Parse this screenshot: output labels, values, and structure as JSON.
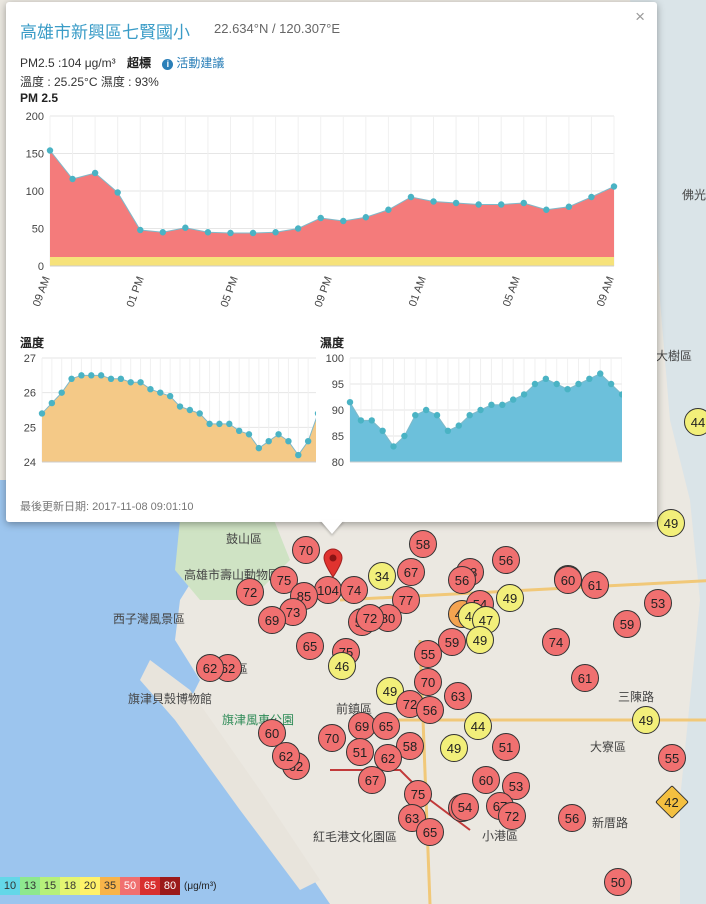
{
  "popup": {
    "title": "高雄市新興區七賢國小",
    "coords": "22.634°N / 120.307°E",
    "pm25_text": "PM2.5 :104 μg/m³",
    "status": "超標",
    "advice_label": "活動建議",
    "temp_humid_text": "溫度 : 25.25°C  濕度 : 93%",
    "pm_chart_label": "PM 2.5",
    "temp_chart_label": "溫度",
    "humid_chart_label": "濕度",
    "updated": "最後更新日期: 2017-11-08 09:01:10",
    "close_symbol": "×"
  },
  "chart_data": [
    {
      "type": "area",
      "title": "PM 2.5",
      "ylim": [
        0,
        200
      ],
      "yticks": [
        0,
        50,
        100,
        150,
        200
      ],
      "xtick_labels": [
        "09 AM",
        "01 PM",
        "05 PM",
        "09 PM",
        "01 AM",
        "05 AM",
        "09 AM"
      ],
      "color": "#f47b7b",
      "values": [
        154,
        116,
        124,
        98,
        48,
        45,
        51,
        45,
        44,
        44,
        45,
        50,
        64,
        60,
        65,
        75,
        92,
        86,
        84,
        82,
        82,
        84,
        75,
        79,
        92,
        106
      ]
    },
    {
      "type": "area",
      "title": "溫度",
      "ylim": [
        24,
        27
      ],
      "yticks": [
        24,
        25,
        26,
        27
      ],
      "color": "#f4c987",
      "values": [
        25.4,
        25.7,
        26.0,
        26.4,
        26.5,
        26.5,
        26.5,
        26.4,
        26.4,
        26.3,
        26.3,
        26.1,
        26.0,
        25.9,
        25.6,
        25.5,
        25.4,
        25.1,
        25.1,
        25.1,
        24.9,
        24.8,
        24.4,
        24.6,
        24.8,
        24.6,
        24.2,
        24.6,
        25.4
      ]
    },
    {
      "type": "area",
      "title": "濕度",
      "ylim": [
        80,
        100
      ],
      "yticks": [
        80,
        85,
        90,
        95,
        100
      ],
      "color": "#6cc0db",
      "values": [
        91.5,
        88,
        88,
        86,
        83,
        85,
        89,
        90,
        89,
        86,
        87,
        89,
        90,
        91,
        91,
        92,
        93,
        95,
        96,
        95,
        94,
        95,
        96,
        97,
        95,
        93
      ]
    }
  ],
  "legend": {
    "values": [
      "10",
      "13",
      "15",
      "18",
      "20",
      "35",
      "50",
      "65",
      "80"
    ],
    "colors": [
      "#64d7e8",
      "#8ee88e",
      "#b6f07a",
      "#e4f572",
      "#fff26a",
      "#f7b44a",
      "#f07070",
      "#d83030",
      "#9b1a1a"
    ],
    "unit": "(μg/m³)"
  },
  "places": [
    {
      "name": "鼓山區",
      "cls": ""
    },
    {
      "name": "高雄市壽山動物園",
      "cls": ""
    },
    {
      "name": "西子灣風景區",
      "cls": ""
    },
    {
      "name": "旗津區",
      "cls": ""
    },
    {
      "name": "旗津貝殼博物館",
      "cls": ""
    },
    {
      "name": "旗津風車公園",
      "cls": "green"
    },
    {
      "name": "紅毛港文化園區",
      "cls": ""
    },
    {
      "name": "大寮區",
      "cls": ""
    },
    {
      "name": "小港區",
      "cls": ""
    },
    {
      "name": "前鎮區",
      "cls": ""
    },
    {
      "name": "大樹區",
      "cls": ""
    },
    {
      "name": "佛光",
      "cls": ""
    },
    {
      "name": "三陳路",
      "cls": ""
    },
    {
      "name": "新厝路",
      "cls": ""
    }
  ],
  "markers": [
    {
      "v": "70",
      "c": "red"
    },
    {
      "v": "104",
      "c": "red"
    },
    {
      "v": "75",
      "c": "red"
    },
    {
      "v": "72",
      "c": "red"
    },
    {
      "v": "85",
      "c": "red"
    },
    {
      "v": "73",
      "c": "red"
    },
    {
      "v": "69",
      "c": "red"
    },
    {
      "v": "74",
      "c": "red"
    },
    {
      "v": "34",
      "c": "yel"
    },
    {
      "v": "67",
      "c": "red"
    },
    {
      "v": "58",
      "c": "red"
    },
    {
      "v": "77",
      "c": "red"
    },
    {
      "v": "54",
      "c": "red"
    },
    {
      "v": "80",
      "c": "red"
    },
    {
      "v": "75",
      "c": "red"
    },
    {
      "v": "72",
      "c": "red"
    },
    {
      "v": "65",
      "c": "red"
    },
    {
      "v": "62",
      "c": "red"
    },
    {
      "v": "46",
      "c": "yel"
    },
    {
      "v": "49",
      "c": "yel"
    },
    {
      "v": "70",
      "c": "red"
    },
    {
      "v": "72",
      "c": "red"
    },
    {
      "v": "56",
      "c": "red"
    },
    {
      "v": "63",
      "c": "red"
    },
    {
      "v": "69",
      "c": "red"
    },
    {
      "v": "65",
      "c": "red"
    },
    {
      "v": "70",
      "c": "red"
    },
    {
      "v": "51",
      "c": "red"
    },
    {
      "v": "58",
      "c": "red"
    },
    {
      "v": "62",
      "c": "red"
    },
    {
      "v": "67",
      "c": "red"
    },
    {
      "v": "60",
      "c": "red"
    },
    {
      "v": "62",
      "c": "red"
    },
    {
      "v": "75",
      "c": "red"
    },
    {
      "v": "63",
      "c": "red"
    },
    {
      "v": "54",
      "c": "red"
    },
    {
      "v": "58",
      "c": "red"
    },
    {
      "v": "56",
      "c": "red"
    },
    {
      "v": "46",
      "c": "org"
    },
    {
      "v": "54",
      "c": "red"
    },
    {
      "v": "49",
      "c": "yel"
    },
    {
      "v": "44",
      "c": "yel"
    },
    {
      "v": "47",
      "c": "yel"
    },
    {
      "v": "59",
      "c": "red"
    },
    {
      "v": "49",
      "c": "yel"
    },
    {
      "v": "55",
      "c": "red"
    },
    {
      "v": "60",
      "c": "red"
    },
    {
      "v": "61",
      "c": "red"
    },
    {
      "v": "53",
      "c": "red"
    },
    {
      "v": "59",
      "c": "red"
    },
    {
      "v": "74",
      "c": "red"
    },
    {
      "v": "61",
      "c": "red"
    },
    {
      "v": "49",
      "c": "yel"
    },
    {
      "v": "44",
      "c": "yel"
    },
    {
      "v": "51",
      "c": "red"
    },
    {
      "v": "49",
      "c": "yel"
    },
    {
      "v": "60",
      "c": "red"
    },
    {
      "v": "53",
      "c": "red"
    },
    {
      "v": "67",
      "c": "red"
    },
    {
      "v": "72",
      "c": "red"
    },
    {
      "v": "56",
      "c": "red"
    },
    {
      "v": "55",
      "c": "red"
    },
    {
      "v": "42",
      "c": "dia"
    },
    {
      "v": "50",
      "c": "red"
    },
    {
      "v": "44",
      "c": "yel"
    },
    {
      "v": "49",
      "c": "yel"
    },
    {
      "v": "56",
      "c": "red"
    },
    {
      "v": "62",
      "c": "red"
    },
    {
      "v": "60",
      "c": "red"
    },
    {
      "v": "62",
      "c": "red"
    },
    {
      "v": "65",
      "c": "red"
    },
    {
      "v": "54",
      "c": "red"
    }
  ]
}
